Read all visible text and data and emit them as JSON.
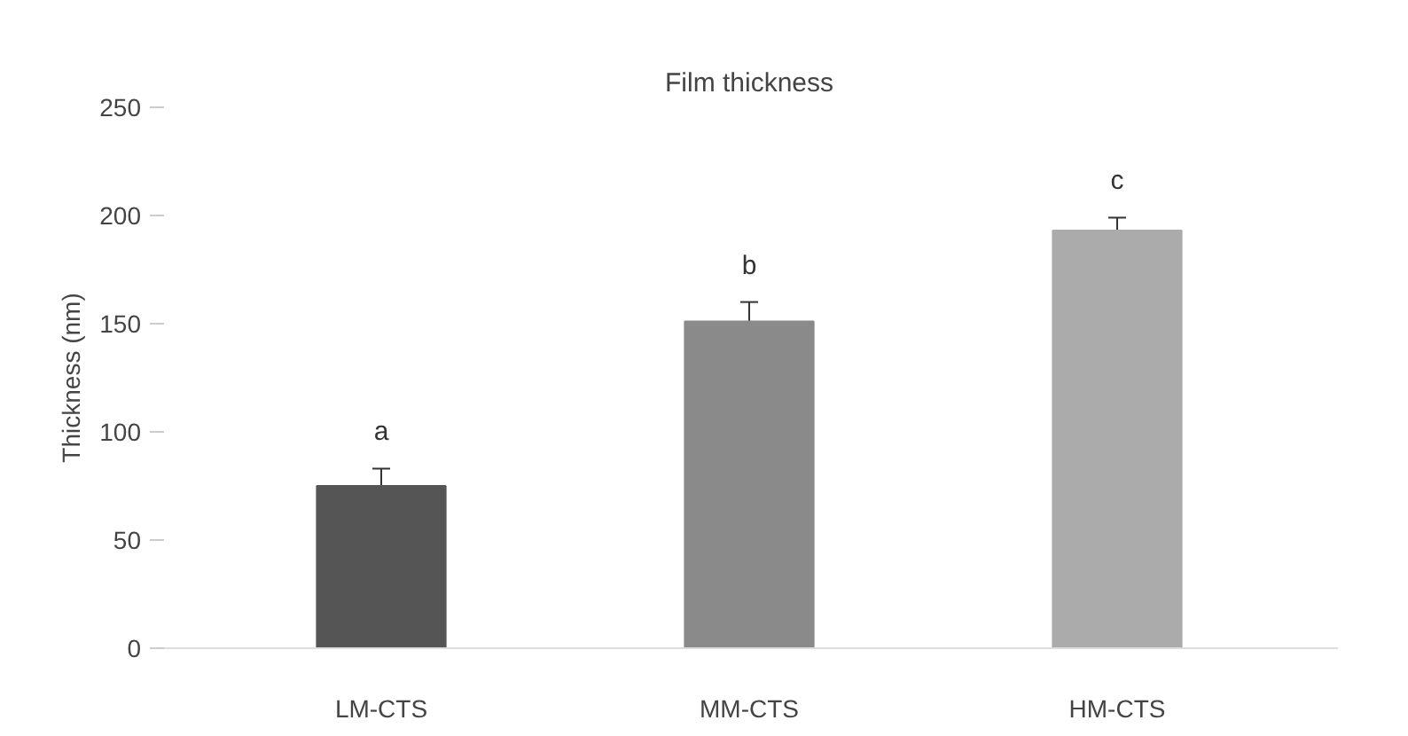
{
  "chart_data": {
    "type": "bar",
    "title": "Film thickness",
    "ylabel": "Thickness (nm)",
    "categories": [
      "LM-CTS",
      "MM-CTS",
      "HM-CTS"
    ],
    "values": [
      75,
      151,
      193
    ],
    "errors": [
      8,
      9,
      6
    ],
    "colors": [
      "#555555",
      "#8a8a8a",
      "#ababab"
    ],
    "ylim": [
      0,
      250
    ],
    "yticks": [
      0,
      50,
      100,
      150,
      200,
      250
    ],
    "grid": false,
    "annotations": [
      "a",
      "b",
      "c"
    ]
  }
}
